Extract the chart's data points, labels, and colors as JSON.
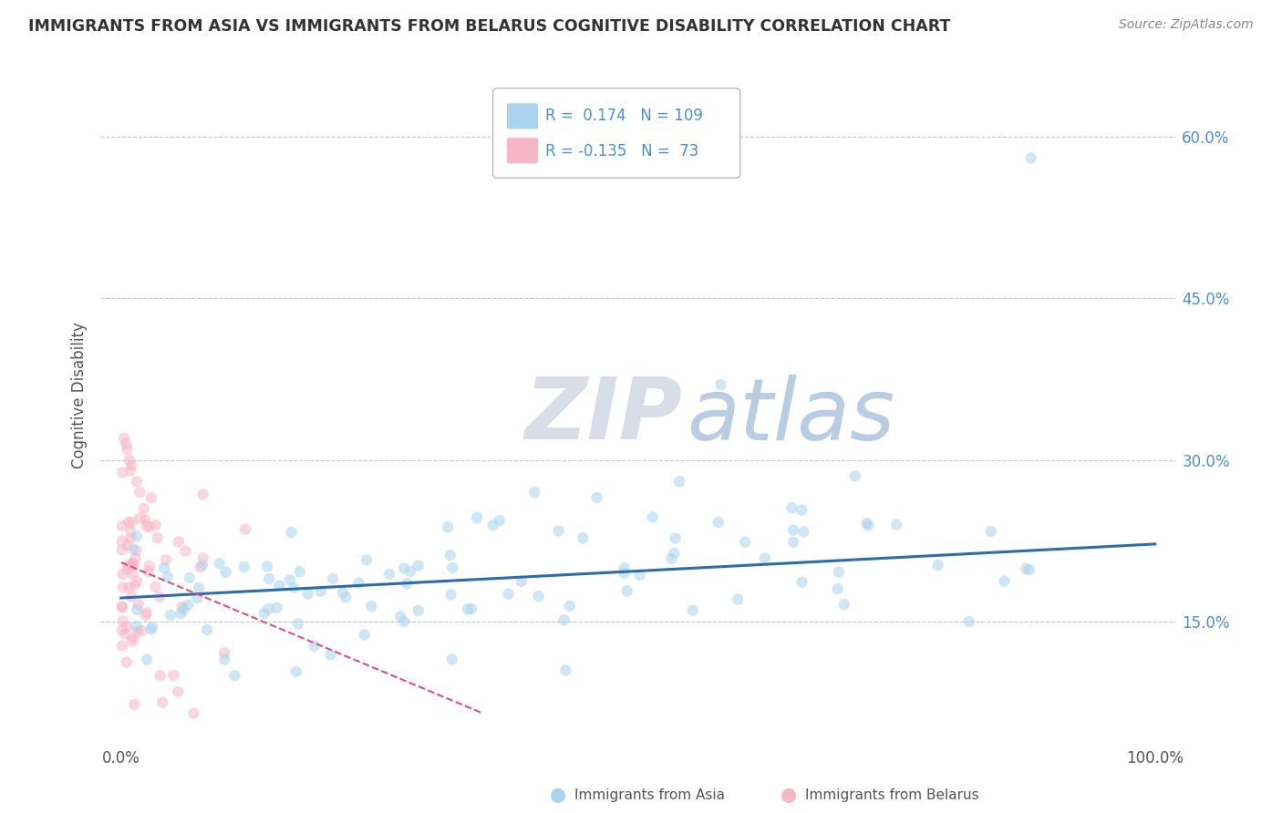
{
  "title": "IMMIGRANTS FROM ASIA VS IMMIGRANTS FROM BELARUS COGNITIVE DISABILITY CORRELATION CHART",
  "source": "Source: ZipAtlas.com",
  "ylabel": "Cognitive Disability",
  "y_tick_labels": [
    "15.0%",
    "30.0%",
    "45.0%",
    "60.0%"
  ],
  "y_ticks": [
    0.15,
    0.3,
    0.45,
    0.6
  ],
  "xlim": [
    -0.02,
    1.02
  ],
  "ylim": [
    0.04,
    0.68
  ],
  "R_asia": 0.174,
  "N_asia": 109,
  "R_belarus": -0.135,
  "N_belarus": 73,
  "color_asia": "#a8d4ed",
  "color_belarus": "#f7b6c8",
  "line_color_asia": "#2b6cb0",
  "line_color_belarus": "#e0507a",
  "legend_label_asia": "Immigrants from Asia",
  "legend_label_belarus": "Immigrants from Belarus",
  "background_color": "#ffffff",
  "grid_color": "#c8c8c8",
  "watermark_zip_color": "#d8dde8",
  "watermark_atlas_color": "#b8cce4",
  "title_color": "#333333",
  "axis_label_color": "#555555",
  "tick_color_right": "#4a90d9",
  "scatter_alpha": 0.55,
  "marker_size": 9,
  "asia_line_start_y": 0.172,
  "asia_line_end_y": 0.222,
  "belarus_line_start_y": 0.205,
  "belarus_line_end_y": 0.065
}
